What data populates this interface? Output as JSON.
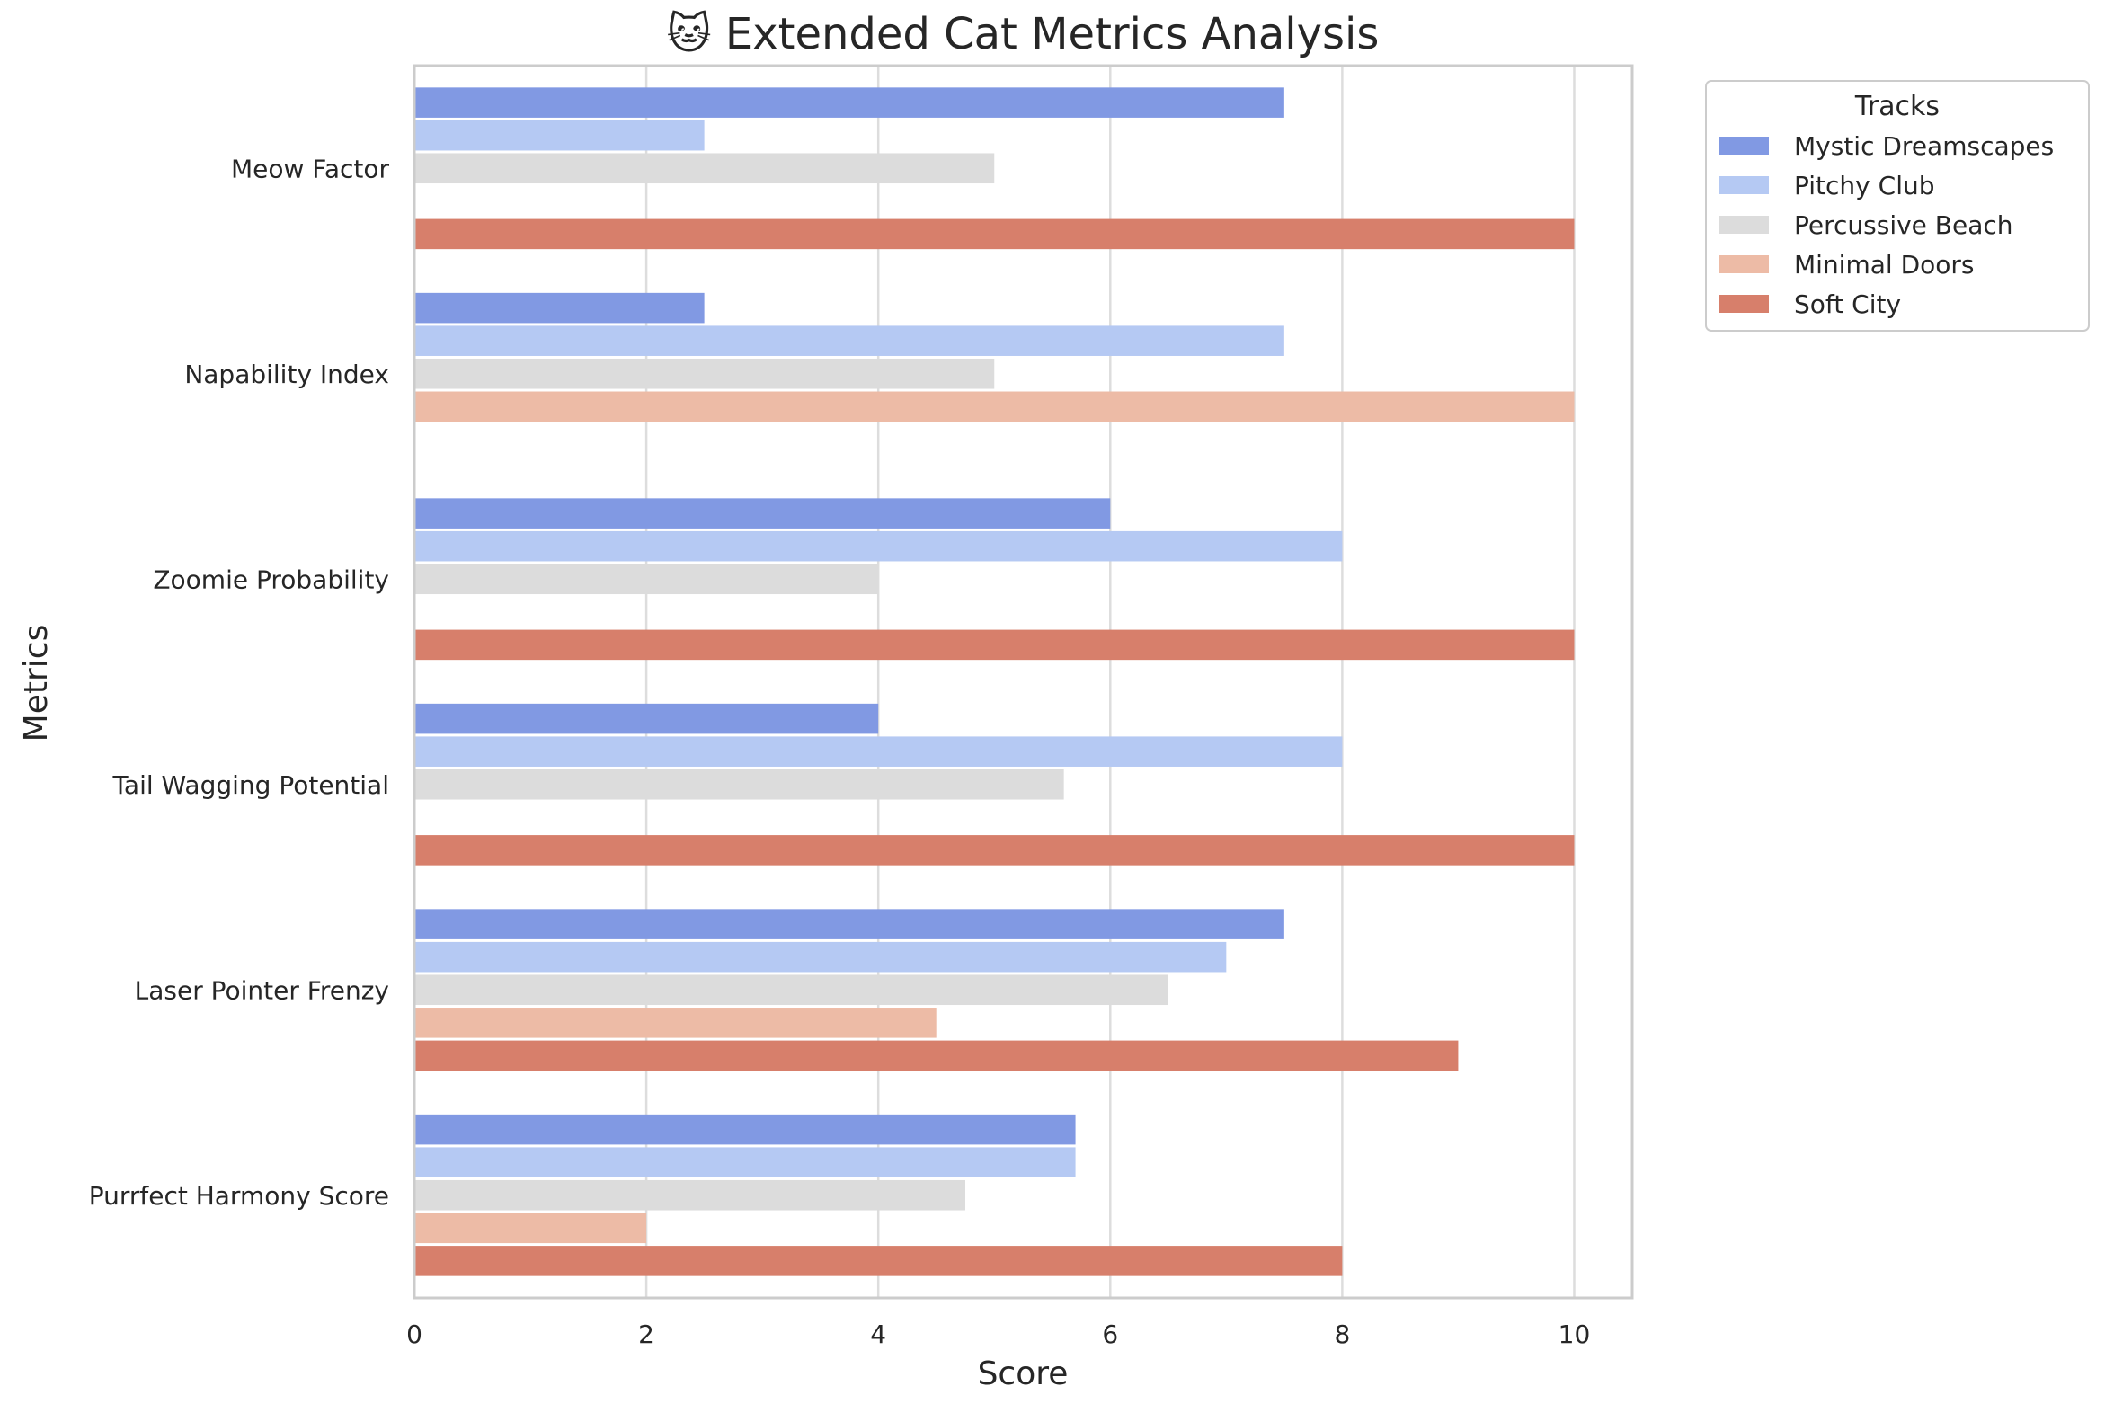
{
  "chart_data": {
    "type": "bar",
    "orientation": "horizontal",
    "title": "🐱 Extended Cat Metrics Analysis",
    "xlabel": "Score",
    "ylabel": "Metrics",
    "xlim": [
      0,
      10.5
    ],
    "x_ticks": [
      0,
      2,
      4,
      6,
      8,
      10
    ],
    "x_tick_labels": [
      "0",
      "2",
      "4",
      "6",
      "8",
      "10"
    ],
    "grid": "vertical",
    "legend_title": "Tracks",
    "legend_placement": "outside-top-right",
    "categories": [
      "Meow Factor",
      "Napability Index",
      "Zoomie Probability",
      "Tail Wagging Potential",
      "Laser Pointer Frenzy",
      "Purrfect Harmony Score"
    ],
    "series": [
      {
        "name": "Mystic Dreamscapes",
        "color": "#8199e3",
        "values": [
          7.5,
          2.5,
          6,
          4,
          7.5,
          5.7
        ]
      },
      {
        "name": "Pitchy Club",
        "color": "#b5c9f3",
        "values": [
          2.5,
          7.5,
          8,
          8,
          7,
          5.7
        ]
      },
      {
        "name": "Percussive Beach",
        "color": "#dcdcdc",
        "values": [
          5,
          5,
          4,
          5.6,
          6.5,
          4.75
        ]
      },
      {
        "name": "Minimal Doors",
        "color": "#edbba6",
        "values": [
          null,
          10,
          null,
          null,
          4.5,
          2
        ]
      },
      {
        "name": "Soft City",
        "color": "#d77f6b",
        "values": [
          10,
          null,
          10,
          10,
          9,
          8
        ]
      }
    ]
  }
}
